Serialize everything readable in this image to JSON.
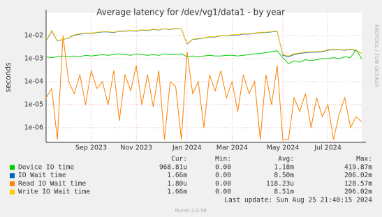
{
  "chart_data": {
    "type": "line",
    "title": "Average latency for /dev/vg1/data1 - by year",
    "y_label": "seconds",
    "side_text": "RRDTOOL / TOBI OETIKER",
    "log_scale": true,
    "grid": true,
    "categories": [
      null,
      null,
      null,
      null,
      null,
      null,
      null,
      null,
      "Sep 2023",
      null,
      null,
      null,
      null,
      null,
      null,
      null,
      "Nov 2023",
      null,
      null,
      null,
      null,
      null,
      null,
      null,
      null,
      "Jan 2024",
      null,
      null,
      null,
      null,
      null,
      null,
      null,
      "Mar 2024",
      null,
      null,
      null,
      null,
      null,
      null,
      null,
      null,
      "May 2024",
      null,
      null,
      null,
      null,
      null,
      null,
      null,
      "Jul 2024",
      null,
      null,
      null,
      null,
      null,
      null
    ],
    "ylim": [
      2.3e-07,
      0.1
    ],
    "yticks": [
      {
        "value": 1e-06,
        "label": "1e-06"
      },
      {
        "value": 1e-05,
        "label": "1e-05"
      },
      {
        "value": 0.0001,
        "label": "1e-04"
      },
      {
        "value": 0.001,
        "label": "1e-03"
      },
      {
        "value": 0.01,
        "label": "1e-02"
      }
    ],
    "stat_headers": [
      "Cur:",
      "Min:",
      "Avg:",
      "Max:"
    ],
    "series": [
      {
        "name": "Device IO time",
        "color": "#00cc00",
        "stats": [
          "968.81u",
          "0.00",
          "1.18m",
          "419.87m"
        ],
        "values": [
          0.0012,
          0.0011,
          0.0012,
          0.0013,
          0.0012,
          0.0013,
          0.0012,
          0.0014,
          0.0013,
          0.0014,
          0.0015,
          0.0014,
          0.0015,
          0.0016,
          0.0015,
          0.0014,
          0.0016,
          0.0015,
          0.0014,
          0.0015,
          0.0014,
          0.0016,
          0.0015,
          0.0015,
          0.0016,
          0.0012,
          0.0013,
          0.0012,
          0.0013,
          0.0014,
          0.0013,
          0.0013,
          0.0014,
          0.0014,
          0.0013,
          0.0014,
          0.0015,
          0.0016,
          0.0017,
          0.0018,
          0.002,
          0.0022,
          0.0011,
          0.0006,
          0.0008,
          0.0007,
          0.0009,
          0.0008,
          0.0009,
          0.001,
          0.001,
          0.0011,
          0.001,
          0.0012,
          0.0011,
          0.0025,
          0.00097
        ]
      },
      {
        "name": "IO Wait time",
        "color": "#0066b3",
        "stats": [
          "1.66m",
          "0.00",
          "8.50m",
          "206.02m"
        ],
        "values": [
          0.0058,
          0.016,
          0.0058,
          0.0068,
          0.0078,
          0.0105,
          0.0115,
          0.0125,
          0.0125,
          0.0135,
          0.0145,
          0.0145,
          0.0135,
          0.0155,
          0.0155,
          0.0165,
          0.0155,
          0.0175,
          0.0165,
          0.0185,
          0.0175,
          0.0195,
          0.0185,
          0.0205,
          0.0195,
          0.0043,
          0.0068,
          0.0072,
          0.0078,
          0.0087,
          0.0087,
          0.0097,
          0.0097,
          0.0106,
          0.0106,
          0.0116,
          0.0116,
          0.0126,
          0.0135,
          0.0135,
          0.0145,
          0.0155,
          0.0014,
          0.0012,
          0.0015,
          0.0017,
          0.0018,
          0.0019,
          0.0019,
          0.002,
          0.0023,
          0.0025,
          0.0024,
          0.0023,
          0.0025,
          0.0022,
          0.00166
        ]
      },
      {
        "name": "Read IO Wait time",
        "color": "#ff8000",
        "stats": [
          "1.80u",
          "0.00",
          "118.23u",
          "128.57m"
        ],
        "values": [
          2e-05,
          5e-05,
          3e-07,
          0.01,
          0.0001,
          3e-05,
          0.0002,
          1e-05,
          0.0003,
          5e-05,
          0.0001,
          1e-05,
          0.0003,
          2e-06,
          0.0002,
          4e-05,
          0.0005,
          1e-05,
          0.0002,
          8e-06,
          0.0003,
          3e-07,
          0.0001,
          6e-05,
          3e-07,
          0.002,
          3e-05,
          0.0001,
          1e-06,
          0.0002,
          4e-05,
          0.0003,
          2e-05,
          0.0001,
          5e-06,
          0.0002,
          3e-05,
          0.0001,
          3e-07,
          0.0002,
          1e-05,
          0.0005,
          3e-07,
          3e-07,
          2e-05,
          5e-06,
          3e-05,
          1e-06,
          2e-05,
          3e-06,
          1e-05,
          3e-07,
          4e-06,
          2e-05,
          1e-06,
          3e-06,
          1.8e-06
        ]
      },
      {
        "name": "Write IO Wait time",
        "color": "#ffcc00",
        "stats": [
          "1.66m",
          "0.00",
          "8.51m",
          "206.02m"
        ],
        "values": [
          0.006,
          0.017,
          0.006,
          0.007,
          0.008,
          0.011,
          0.012,
          0.013,
          0.013,
          0.014,
          0.015,
          0.015,
          0.014,
          0.016,
          0.016,
          0.017,
          0.016,
          0.018,
          0.017,
          0.019,
          0.018,
          0.02,
          0.019,
          0.021,
          0.02,
          0.0045,
          0.007,
          0.0075,
          0.008,
          0.009,
          0.009,
          0.01,
          0.01,
          0.011,
          0.011,
          0.012,
          0.012,
          0.013,
          0.014,
          0.014,
          0.015,
          0.016,
          0.0015,
          0.0013,
          0.0016,
          0.0018,
          0.0019,
          0.002,
          0.002,
          0.0021,
          0.0024,
          0.0026,
          0.0025,
          0.0024,
          0.0026,
          0.0023,
          0.00166
        ]
      }
    ],
    "last_update": "Last update: Sun Aug 25 21:40:15 2024",
    "footer": "Munin 2.0.56"
  }
}
